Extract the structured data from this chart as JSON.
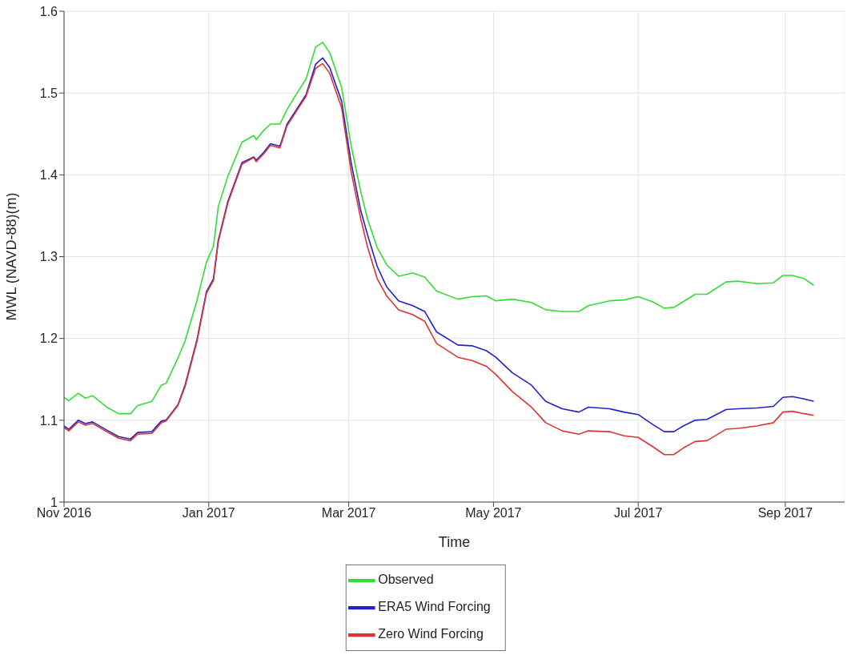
{
  "chart_data": {
    "type": "line",
    "xlabel": "Time",
    "ylabel": "MWL (NAVD-88)(m)",
    "x": [
      "2016-11-01",
      "2016-11-03",
      "2016-11-07",
      "2016-11-10",
      "2016-11-13",
      "2016-11-19",
      "2016-11-24",
      "2016-11-29",
      "2016-12-02",
      "2016-12-08",
      "2016-12-12",
      "2016-12-14",
      "2016-12-19",
      "2016-12-22",
      "2016-12-27",
      "2016-12-31",
      "2017-01-03",
      "2017-01-05",
      "2017-01-09",
      "2017-01-15",
      "2017-01-20",
      "2017-01-21",
      "2017-01-24",
      "2017-01-27",
      "2017-01-31",
      "2017-02-03",
      "2017-02-07",
      "2017-02-11",
      "2017-02-15",
      "2017-02-18",
      "2017-02-21",
      "2017-02-26",
      "2017-03-02",
      "2017-03-06",
      "2017-03-09",
      "2017-03-13",
      "2017-03-17",
      "2017-03-22",
      "2017-03-28",
      "2017-04-02",
      "2017-04-07",
      "2017-04-16",
      "2017-04-22",
      "2017-04-28",
      "2017-05-02",
      "2017-05-09",
      "2017-05-17",
      "2017-05-23",
      "2017-05-30",
      "2017-06-06",
      "2017-06-10",
      "2017-06-19",
      "2017-06-25",
      "2017-07-01",
      "2017-07-07",
      "2017-07-12",
      "2017-07-16",
      "2017-07-20",
      "2017-07-25",
      "2017-07-30",
      "2017-08-07",
      "2017-08-12",
      "2017-08-20",
      "2017-08-27",
      "2017-08-31",
      "2017-09-04",
      "2017-09-09",
      "2017-09-13"
    ],
    "series": [
      {
        "name": "Observed",
        "color": "#33dd33",
        "values": [
          1.128,
          1.124,
          1.133,
          1.127,
          1.13,
          1.116,
          1.108,
          1.108,
          1.118,
          1.123,
          1.143,
          1.145,
          1.176,
          1.197,
          1.246,
          1.293,
          1.313,
          1.361,
          1.398,
          1.44,
          1.448,
          1.443,
          1.454,
          1.462,
          1.462,
          1.48,
          1.499,
          1.517,
          1.556,
          1.562,
          1.549,
          1.507,
          1.436,
          1.38,
          1.345,
          1.311,
          1.29,
          1.276,
          1.28,
          1.275,
          1.258,
          1.248,
          1.251,
          1.252,
          1.246,
          1.248,
          1.244,
          1.235,
          1.233,
          1.233,
          1.24,
          1.246,
          1.247,
          1.251,
          1.245,
          1.237,
          1.238,
          1.245,
          1.254,
          1.254,
          1.269,
          1.27,
          1.267,
          1.268,
          1.277,
          1.277,
          1.273,
          1.265
        ]
      },
      {
        "name": "ERA5 Wind Forcing",
        "color": "#2222cc",
        "values": [
          1.093,
          1.089,
          1.1,
          1.096,
          1.098,
          1.088,
          1.08,
          1.077,
          1.085,
          1.086,
          1.099,
          1.1,
          1.119,
          1.143,
          1.198,
          1.257,
          1.273,
          1.32,
          1.367,
          1.415,
          1.422,
          1.418,
          1.427,
          1.438,
          1.435,
          1.462,
          1.48,
          1.498,
          1.535,
          1.543,
          1.531,
          1.49,
          1.415,
          1.357,
          1.326,
          1.288,
          1.263,
          1.246,
          1.24,
          1.233,
          1.208,
          1.192,
          1.191,
          1.185,
          1.177,
          1.158,
          1.143,
          1.123,
          1.114,
          1.11,
          1.116,
          1.114,
          1.11,
          1.107,
          1.095,
          1.086,
          1.086,
          1.093,
          1.1,
          1.101,
          1.113,
          1.114,
          1.115,
          1.117,
          1.128,
          1.129,
          1.126,
          1.123
        ]
      },
      {
        "name": "Zero Wind Forcing",
        "color": "#dd3333",
        "values": [
          1.091,
          1.087,
          1.098,
          1.094,
          1.096,
          1.086,
          1.078,
          1.075,
          1.083,
          1.084,
          1.097,
          1.099,
          1.118,
          1.141,
          1.196,
          1.255,
          1.271,
          1.318,
          1.365,
          1.413,
          1.421,
          1.416,
          1.425,
          1.436,
          1.433,
          1.46,
          1.478,
          1.496,
          1.53,
          1.536,
          1.524,
          1.482,
          1.404,
          1.347,
          1.311,
          1.273,
          1.252,
          1.235,
          1.229,
          1.221,
          1.194,
          1.177,
          1.173,
          1.166,
          1.156,
          1.135,
          1.116,
          1.097,
          1.087,
          1.083,
          1.087,
          1.086,
          1.081,
          1.079,
          1.068,
          1.058,
          1.058,
          1.066,
          1.074,
          1.075,
          1.089,
          1.09,
          1.093,
          1.097,
          1.11,
          1.111,
          1.108,
          1.106
        ]
      }
    ],
    "xlim": [
      "2016-11-01",
      "2017-09-26"
    ],
    "xticks": [
      {
        "value": "2016-11-01",
        "label": "Nov 2016"
      },
      {
        "value": "2017-01-01",
        "label": "Jan 2017"
      },
      {
        "value": "2017-03-01",
        "label": "Mar 2017"
      },
      {
        "value": "2017-05-01",
        "label": "May 2017"
      },
      {
        "value": "2017-07-01",
        "label": "Jul 2017"
      },
      {
        "value": "2017-09-01",
        "label": "Sep 2017"
      }
    ],
    "ylim": [
      1,
      1.6
    ],
    "yticks": [
      1,
      1.1,
      1.2,
      1.3,
      1.4,
      1.5,
      1.6
    ],
    "grid": true,
    "legend": "bottom",
    "marker": "none",
    "line_style": "solid"
  }
}
